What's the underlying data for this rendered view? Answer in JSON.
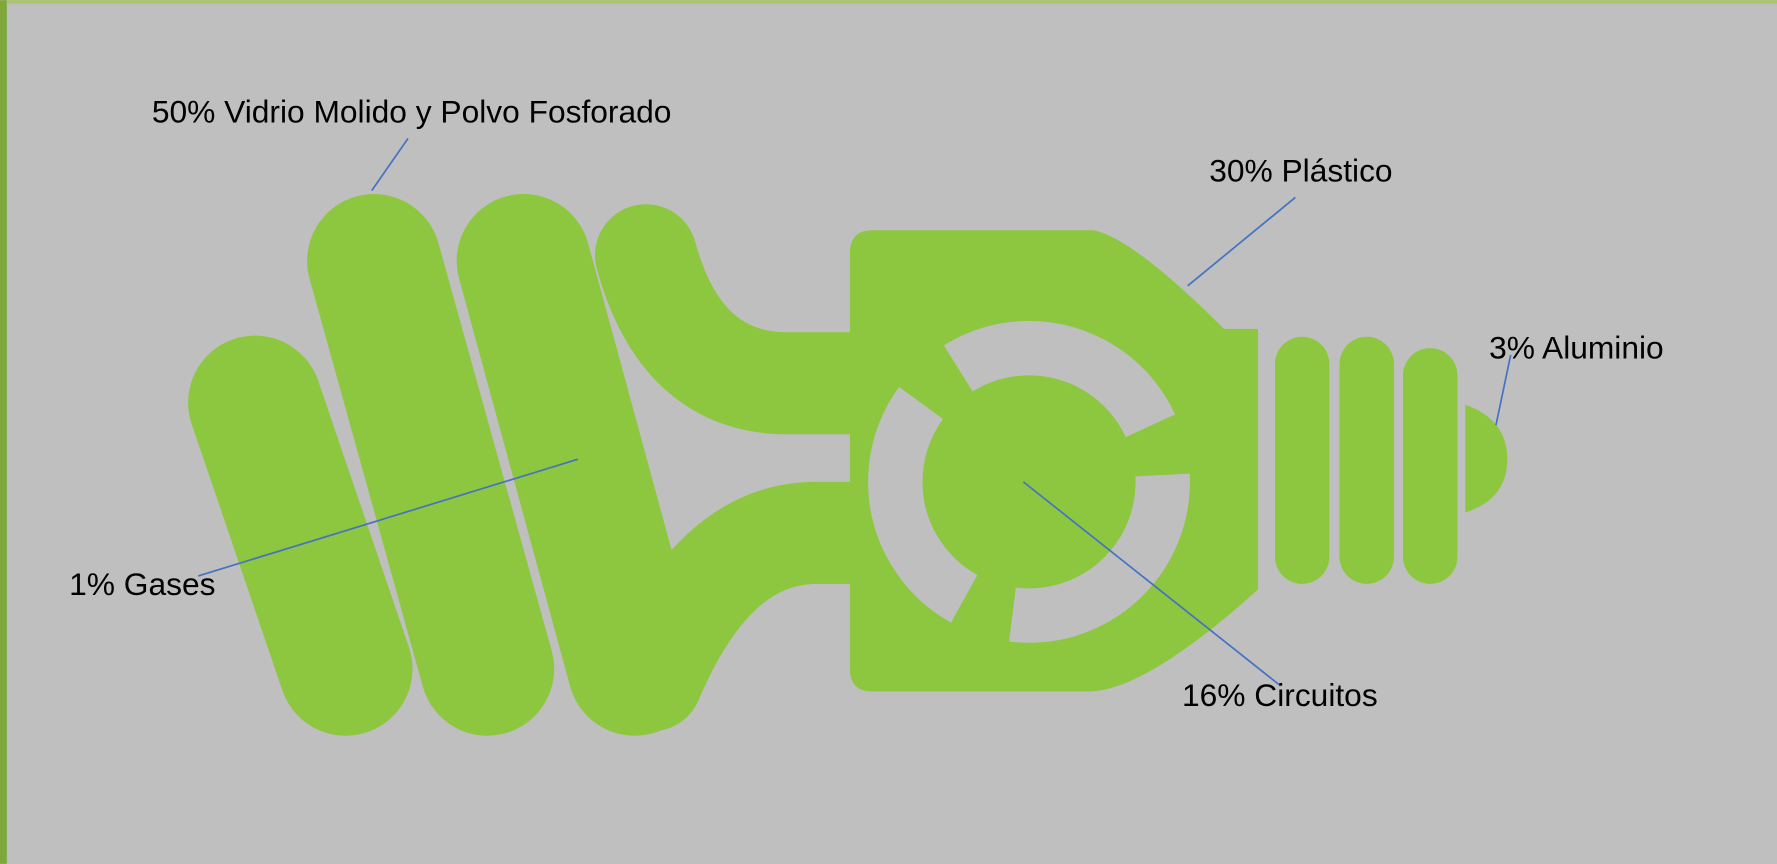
{
  "labels": [
    "50% Vidrio Molido y Polvo Fosforado",
    "30% Plástico",
    "3% Aluminio",
    "1% Gases",
    "16% Circuitos"
  ]
}
